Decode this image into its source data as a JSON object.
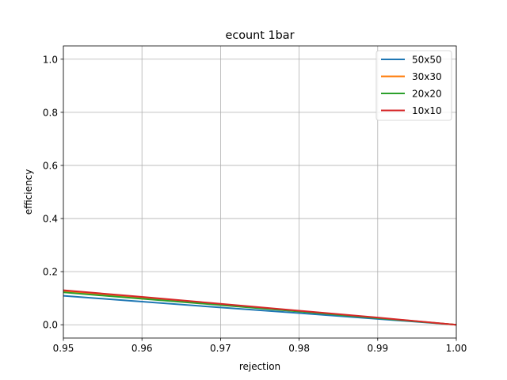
{
  "chart_data": {
    "type": "line",
    "title": "ecount 1bar",
    "xlabel": "rejection",
    "ylabel": "efficiency",
    "xlim": [
      0.95,
      1.0
    ],
    "ylim": [
      -0.05,
      1.05
    ],
    "xticks": [
      0.95,
      0.96,
      0.97,
      0.98,
      0.99,
      1.0
    ],
    "xtick_labels": [
      "0.95",
      "0.96",
      "0.97",
      "0.98",
      "0.99",
      "1.00"
    ],
    "yticks": [
      0.0,
      0.2,
      0.4,
      0.6,
      0.8,
      1.0
    ],
    "ytick_labels": [
      "0.0",
      "0.2",
      "0.4",
      "0.6",
      "0.8",
      "1.0"
    ],
    "grid": true,
    "legend_position": "top-right",
    "series": [
      {
        "name": "50x50",
        "color": "#1f77b4",
        "x": [
          0.95,
          0.96,
          0.97,
          0.98,
          0.99,
          1.0
        ],
        "y": [
          0.109,
          0.087,
          0.065,
          0.044,
          0.022,
          0.0
        ]
      },
      {
        "name": "30x30",
        "color": "#ff7f0e",
        "x": [
          0.95,
          0.96,
          0.97,
          0.98,
          0.99,
          1.0
        ],
        "y": [
          0.127,
          0.102,
          0.077,
          0.052,
          0.026,
          0.0
        ]
      },
      {
        "name": "20x20",
        "color": "#2ca02c",
        "x": [
          0.95,
          0.96,
          0.97,
          0.98,
          0.99,
          1.0
        ],
        "y": [
          0.122,
          0.098,
          0.074,
          0.05,
          0.025,
          0.0
        ]
      },
      {
        "name": "10x10",
        "color": "#d62728",
        "x": [
          0.95,
          0.96,
          0.97,
          0.98,
          0.99,
          1.0
        ],
        "y": [
          0.13,
          0.105,
          0.079,
          0.053,
          0.027,
          0.0
        ]
      }
    ]
  }
}
